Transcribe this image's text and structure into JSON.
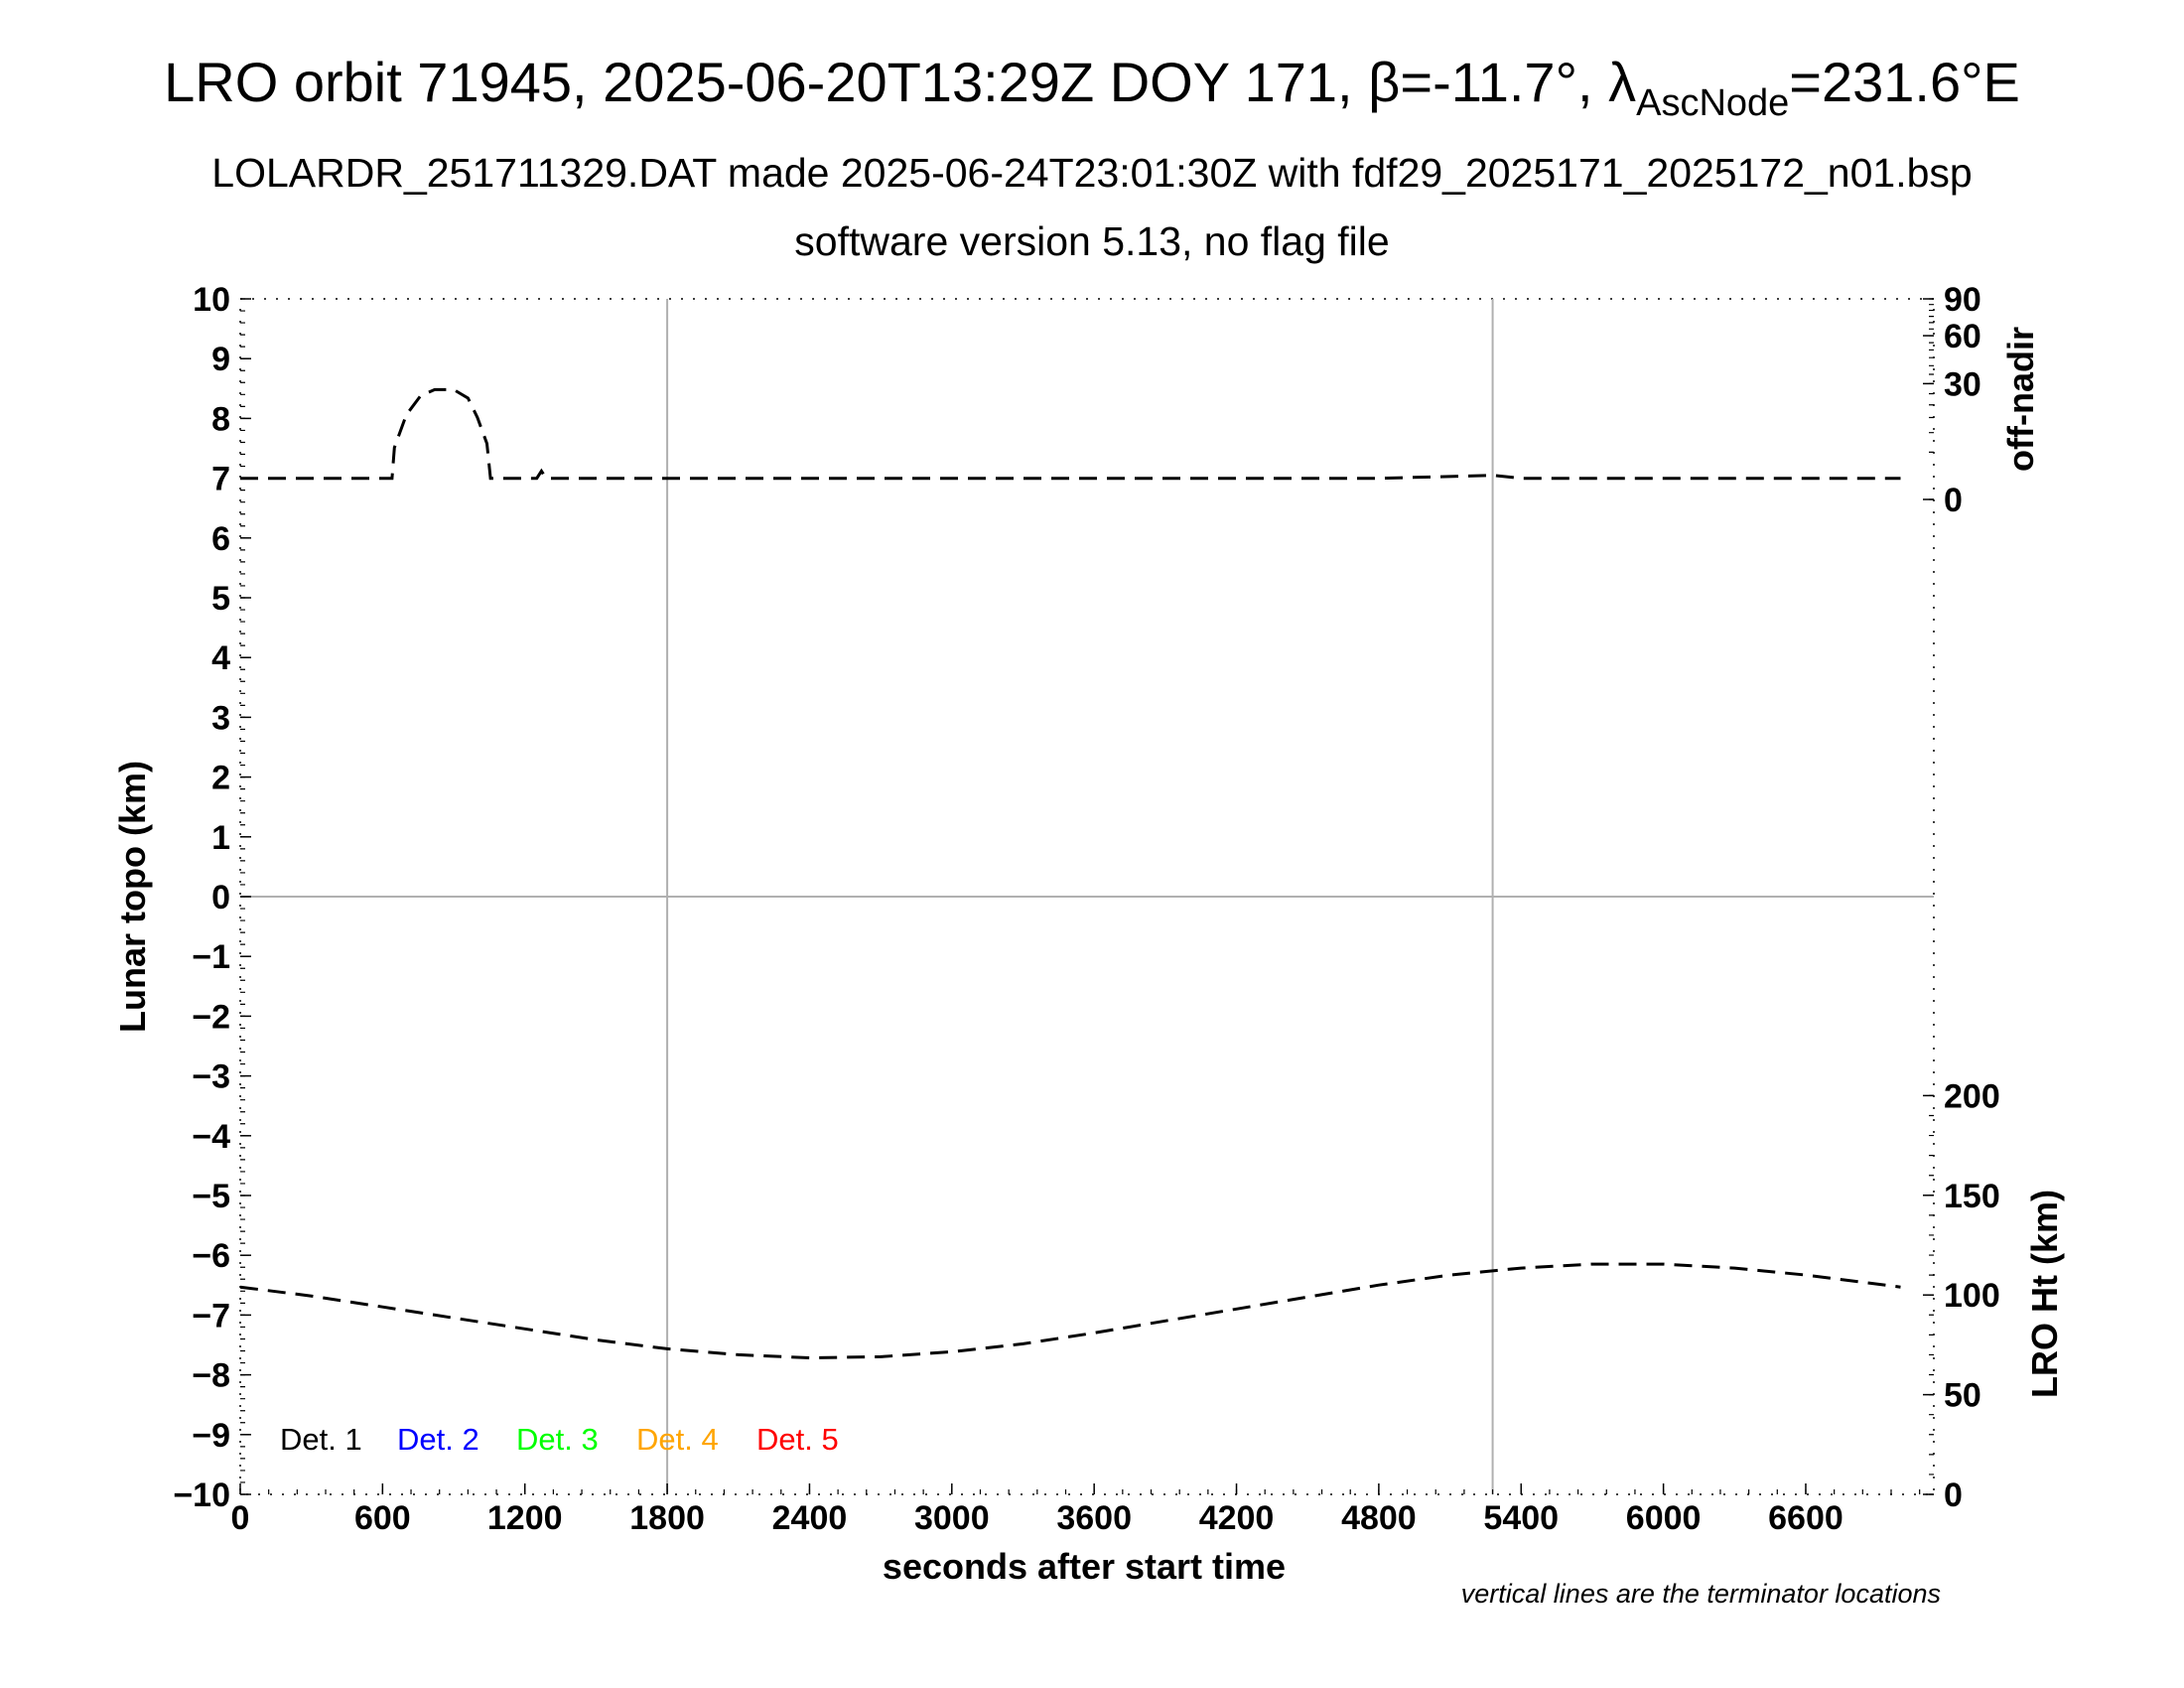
{
  "chart_data": {
    "type": "line",
    "title": {
      "prefix": "LRO orbit 71945, 2025-06-20T13:29Z DOY 171, ",
      "beta_symbol": "β",
      "beta_value": "=-11.7°, ",
      "lambda_symbol": "λ",
      "lambda_sub": "AscNode",
      "lambda_value": "=231.6°E"
    },
    "subtitle": "LOLARDR_251711329.DAT made 2025-06-24T23:01:30Z with fdf29_2025171_2025172_n01.bsp",
    "subtitle2": "software version 5.13, no flag file",
    "xlabel": "seconds after start time",
    "ylabel": "Lunar topo (km)",
    "ylabel_right_top": "off-nadir",
    "ylabel_right_bottom": "LRO Ht (km)",
    "note": "vertical lines are the terminator locations",
    "xlim": [
      0,
      7140
    ],
    "ylim": [
      -10,
      10
    ],
    "x_ticks": [
      "0",
      "600",
      "1200",
      "1800",
      "2400",
      "3000",
      "3600",
      "4200",
      "4800",
      "5400",
      "6000",
      "6600"
    ],
    "y_ticks": [
      "10",
      "9",
      "8",
      "7",
      "6",
      "5",
      "4",
      "3",
      "2",
      "1",
      "0",
      "−1",
      "−2",
      "−3",
      "−4",
      "−5",
      "−6",
      "−7",
      "−8",
      "−9",
      "−10"
    ],
    "right_top_ticks": [
      {
        "label": "90",
        "value": 90
      },
      {
        "label": "60",
        "value": 60
      },
      {
        "label": "30",
        "value": 30
      },
      {
        "label": "0",
        "value": 0
      }
    ],
    "right_bottom_ticks": [
      {
        "label": "200",
        "value": 200
      },
      {
        "label": "150",
        "value": 150
      },
      {
        "label": "100",
        "value": 100
      },
      {
        "label": "50",
        "value": 50
      },
      {
        "label": "0",
        "value": 0
      }
    ],
    "terminators": [
      1800,
      5280
    ],
    "grid_zero_line": true,
    "legend": {
      "placement": "bottom-left",
      "entries": [
        {
          "label": "Det. 1",
          "color": "#000000"
        },
        {
          "label": "Det. 2",
          "color": "#0000ff"
        },
        {
          "label": "Det. 3",
          "color": "#00ff00"
        },
        {
          "label": "Det. 4",
          "color": "#ffa500"
        },
        {
          "label": "Det. 5",
          "color": "#ff0000"
        }
      ]
    },
    "series": [
      {
        "axis": "off-nadir",
        "style": "dashed",
        "color": "#000000",
        "points": [
          [
            0,
            1
          ],
          [
            600,
            1
          ],
          [
            640,
            1
          ],
          [
            650,
            6
          ],
          [
            700,
            16
          ],
          [
            760,
            24
          ],
          [
            820,
            27
          ],
          [
            900,
            27
          ],
          [
            960,
            23
          ],
          [
            1000,
            15
          ],
          [
            1040,
            7
          ],
          [
            1055,
            1
          ],
          [
            1100,
            1
          ],
          [
            1250,
            1
          ],
          [
            1270,
            1.8
          ],
          [
            1290,
            1
          ],
          [
            1800,
            1
          ],
          [
            2400,
            1
          ],
          [
            3000,
            1
          ],
          [
            3600,
            1
          ],
          [
            4200,
            1
          ],
          [
            4800,
            1
          ],
          [
            5280,
            1.3
          ],
          [
            5400,
            1
          ],
          [
            6000,
            1
          ],
          [
            6600,
            1
          ],
          [
            7000,
            1
          ]
        ]
      },
      {
        "axis": "LRO Ht",
        "style": "dashed",
        "color": "#000000",
        "points": [
          [
            0,
            104
          ],
          [
            300,
            99.5
          ],
          [
            600,
            94
          ],
          [
            900,
            88.5
          ],
          [
            1200,
            83
          ],
          [
            1500,
            77.5
          ],
          [
            1800,
            73
          ],
          [
            2100,
            70
          ],
          [
            2400,
            68.5
          ],
          [
            2700,
            69
          ],
          [
            3000,
            71.5
          ],
          [
            3300,
            75.5
          ],
          [
            3600,
            81
          ],
          [
            3900,
            87
          ],
          [
            4200,
            93
          ],
          [
            4500,
            99
          ],
          [
            4800,
            105
          ],
          [
            5100,
            110
          ],
          [
            5400,
            113.5
          ],
          [
            5700,
            115.5
          ],
          [
            6000,
            115.5
          ],
          [
            6300,
            113.5
          ],
          [
            6600,
            110
          ],
          [
            7000,
            104
          ]
        ]
      }
    ]
  }
}
